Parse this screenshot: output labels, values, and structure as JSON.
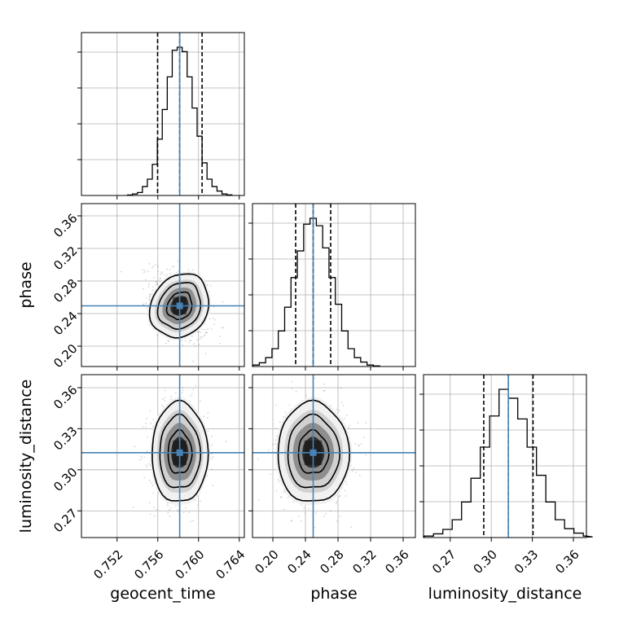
{
  "chart_data": {
    "type": "corner",
    "parameters": [
      {
        "key": "geocent_time",
        "label": "geocent_time",
        "range": [
          0.7485,
          0.7645
        ],
        "ticks": [
          0.752,
          0.756,
          0.76,
          0.764
        ],
        "tick_labels": [
          "0.752",
          "0.756",
          "0.760",
          "0.764"
        ],
        "truth": 0.75815,
        "quantiles": [
          0.75598,
          0.75815,
          0.76035
        ],
        "sigma": 0.00135
      },
      {
        "key": "phase",
        "label": "phase",
        "range": [
          0.175,
          0.375
        ],
        "ticks": [
          0.2,
          0.24,
          0.28,
          0.32,
          0.36
        ],
        "tick_labels": [
          "0.20",
          "0.24",
          "0.28",
          "0.32",
          "0.36"
        ],
        "truth": 0.2495,
        "quantiles": [
          0.228,
          0.2495,
          0.271
        ],
        "sigma": 0.0215
      },
      {
        "key": "luminosity_distance",
        "label": "luminosity_distance",
        "range": [
          0.2505,
          0.3695
        ],
        "ticks": [
          0.27,
          0.3,
          0.33,
          0.36
        ],
        "tick_labels": [
          "0.27",
          "0.30",
          "0.33",
          "0.36"
        ],
        "truth": 0.3125,
        "quantiles": [
          0.2945,
          0.3125,
          0.3305
        ],
        "sigma": 0.018
      }
    ],
    "histograms": {
      "geocent_time": [
        0.3,
        1,
        2,
        6,
        11,
        21,
        38,
        58,
        80,
        98,
        100,
        97,
        80,
        59,
        40,
        22,
        11,
        6,
        3,
        1,
        0.4
      ],
      "phase": [
        0.4,
        1,
        2.5,
        6,
        12,
        24,
        40,
        60,
        78,
        96,
        100,
        95,
        80,
        60,
        42,
        24,
        12,
        6,
        3,
        1,
        0.4
      ],
      "luminosity_distance": [
        0.4,
        1,
        2.5,
        5.5,
        12,
        24,
        40,
        61,
        82,
        100,
        94,
        80,
        61,
        42,
        24,
        12,
        6,
        3,
        1,
        0.4
      ]
    },
    "dashed_lines": "16th, 50th, 84th percentiles",
    "truth_color": "#4682b4",
    "grid": true
  }
}
